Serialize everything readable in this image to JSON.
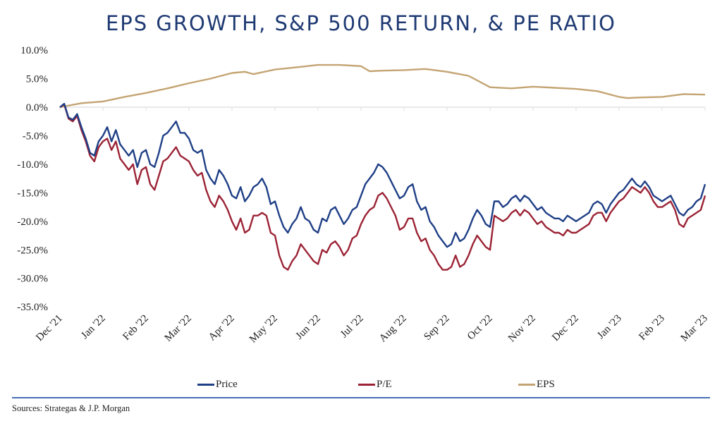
{
  "title": "EPS GROWTH, S&P 500 RETURN, & PE RATIO",
  "source": "Sources: Strategas & J.P. Morgan",
  "colors": {
    "title": "#1f3a73",
    "price": "#1f3f86",
    "pe": "#9b2335",
    "eps": "#c4a473",
    "zero_line": "#e3e3e3",
    "divider": "#4a6fb5"
  },
  "legend": [
    {
      "key": "price",
      "label": "Price"
    },
    {
      "key": "pe",
      "label": "P/E"
    },
    {
      "key": "eps",
      "label": "EPS"
    }
  ],
  "chart_data": {
    "type": "line",
    "title": "EPS GROWTH, S&P 500 RETURN, & PE RATIO",
    "xlabel": "",
    "ylabel": "",
    "ylim": [
      -35,
      10
    ],
    "yticks": [
      10,
      5,
      0,
      -5,
      -10,
      -15,
      -20,
      -25,
      -30,
      -35
    ],
    "ytick_labels": [
      "10.0%",
      "5.0%",
      "0.0%",
      "-5.0%",
      "-10.0%",
      "-15.0%",
      "-20.0%",
      "-25.0%",
      "-30.0%",
      "-35.0%"
    ],
    "x_months": [
      "Dec '21",
      "Jan '22",
      "Feb '22",
      "Mar '22",
      "Apr '22",
      "May '22",
      "Jun '22",
      "Jul '22",
      "Aug '22",
      "Sep '22",
      "Oct '22",
      "Nov '22",
      "Dec '22",
      "Jan '23",
      "Feb '23",
      "Mar '23"
    ],
    "x_range_months": [
      0,
      15
    ],
    "grid": false,
    "legend_position": "bottom",
    "series": [
      {
        "name": "Price",
        "key": "price",
        "x": [
          0,
          0.1,
          0.2,
          0.3,
          0.4,
          0.5,
          0.6,
          0.7,
          0.8,
          0.9,
          1.0,
          1.1,
          1.2,
          1.3,
          1.4,
          1.5,
          1.6,
          1.7,
          1.8,
          1.9,
          2.0,
          2.1,
          2.2,
          2.3,
          2.4,
          2.5,
          2.6,
          2.7,
          2.8,
          2.9,
          3.0,
          3.1,
          3.2,
          3.3,
          3.4,
          3.5,
          3.6,
          3.7,
          3.8,
          3.9,
          4.0,
          4.1,
          4.2,
          4.3,
          4.4,
          4.5,
          4.6,
          4.7,
          4.8,
          4.9,
          5.0,
          5.1,
          5.2,
          5.3,
          5.4,
          5.5,
          5.6,
          5.7,
          5.8,
          5.9,
          6.0,
          6.1,
          6.2,
          6.3,
          6.4,
          6.5,
          6.6,
          6.7,
          6.8,
          6.9,
          7.0,
          7.1,
          7.2,
          7.3,
          7.4,
          7.5,
          7.6,
          7.7,
          7.8,
          7.9,
          8.0,
          8.1,
          8.2,
          8.3,
          8.4,
          8.5,
          8.6,
          8.7,
          8.8,
          8.9,
          9.0,
          9.1,
          9.2,
          9.3,
          9.4,
          9.5,
          9.6,
          9.7,
          9.8,
          9.9,
          10.0,
          10.1,
          10.2,
          10.3,
          10.4,
          10.5,
          10.6,
          10.7,
          10.8,
          10.9,
          11.0,
          11.1,
          11.2,
          11.3,
          11.4,
          11.5,
          11.6,
          11.7,
          11.8,
          11.9,
          12.0,
          12.1,
          12.2,
          12.3,
          12.4,
          12.5,
          12.6,
          12.7,
          12.8,
          12.9,
          13.0,
          13.1,
          13.2,
          13.3,
          13.4,
          13.5,
          13.6,
          13.7,
          13.8,
          13.9,
          14.0,
          14.1,
          14.2,
          14.3,
          14.4,
          14.5,
          14.6,
          14.7,
          14.8,
          14.9,
          15.0
        ],
        "values": [
          0,
          0.6,
          -1.8,
          -2.2,
          -1.2,
          -3.5,
          -5.5,
          -8.0,
          -8.5,
          -6.0,
          -5.0,
          -3.5,
          -6.0,
          -4.0,
          -6.5,
          -7.5,
          -8.5,
          -7.5,
          -10.5,
          -8.0,
          -7.5,
          -10.0,
          -10.5,
          -8.0,
          -5.0,
          -4.5,
          -3.5,
          -2.5,
          -4.5,
          -4.5,
          -5.5,
          -7.5,
          -8.0,
          -7.5,
          -11.0,
          -12.5,
          -13.5,
          -11.0,
          -12.0,
          -13.5,
          -15.5,
          -16.0,
          -14.0,
          -16.5,
          -15.5,
          -14.0,
          -13.5,
          -12.5,
          -14.0,
          -17.0,
          -16.5,
          -19.0,
          -21.0,
          -22.0,
          -20.5,
          -19.5,
          -17.5,
          -19.5,
          -20.0,
          -21.5,
          -22.0,
          -19.5,
          -20.0,
          -18.0,
          -17.5,
          -19.0,
          -20.5,
          -19.5,
          -18.0,
          -17.5,
          -15.5,
          -13.5,
          -12.5,
          -11.5,
          -10.0,
          -10.5,
          -11.5,
          -13.0,
          -14.5,
          -16.0,
          -15.5,
          -14.0,
          -13.5,
          -16.5,
          -18.0,
          -17.5,
          -20.0,
          -21.0,
          -22.5,
          -23.5,
          -24.5,
          -24.0,
          -22.0,
          -23.5,
          -23.0,
          -21.5,
          -19.5,
          -18.0,
          -19.0,
          -20.5,
          -21.0,
          -16.5,
          -16.5,
          -17.5,
          -17.0,
          -16.0,
          -15.5,
          -16.5,
          -15.5,
          -16.0,
          -17.0,
          -18.0,
          -17.5,
          -18.5,
          -19.0,
          -19.5,
          -19.5,
          -20.0,
          -19.0,
          -19.5,
          -20.0,
          -19.5,
          -19.0,
          -18.5,
          -17.0,
          -16.5,
          -17.0,
          -18.5,
          -17.0,
          -16.0,
          -15.0,
          -14.5,
          -13.5,
          -12.5,
          -13.5,
          -14.0,
          -13.0,
          -14.0,
          -15.5,
          -16.0,
          -16.5,
          -16.0,
          -15.5,
          -17.0,
          -18.5,
          -19.0,
          -18.0,
          -17.5,
          -16.5,
          -16.0,
          -13.5
        ]
      },
      {
        "name": "P/E",
        "key": "pe",
        "x": [
          0,
          0.1,
          0.2,
          0.3,
          0.4,
          0.5,
          0.6,
          0.7,
          0.8,
          0.9,
          1.0,
          1.1,
          1.2,
          1.3,
          1.4,
          1.5,
          1.6,
          1.7,
          1.8,
          1.9,
          2.0,
          2.1,
          2.2,
          2.3,
          2.4,
          2.5,
          2.6,
          2.7,
          2.8,
          2.9,
          3.0,
          3.1,
          3.2,
          3.3,
          3.4,
          3.5,
          3.6,
          3.7,
          3.8,
          3.9,
          4.0,
          4.1,
          4.2,
          4.3,
          4.4,
          4.5,
          4.6,
          4.7,
          4.8,
          4.9,
          5.0,
          5.1,
          5.2,
          5.3,
          5.4,
          5.5,
          5.6,
          5.7,
          5.8,
          5.9,
          6.0,
          6.1,
          6.2,
          6.3,
          6.4,
          6.5,
          6.6,
          6.7,
          6.8,
          6.9,
          7.0,
          7.1,
          7.2,
          7.3,
          7.4,
          7.5,
          7.6,
          7.7,
          7.8,
          7.9,
          8.0,
          8.1,
          8.2,
          8.3,
          8.4,
          8.5,
          8.6,
          8.7,
          8.8,
          8.9,
          9.0,
          9.1,
          9.2,
          9.3,
          9.4,
          9.5,
          9.6,
          9.7,
          9.8,
          9.9,
          10.0,
          10.1,
          10.2,
          10.3,
          10.4,
          10.5,
          10.6,
          10.7,
          10.8,
          10.9,
          11.0,
          11.1,
          11.2,
          11.3,
          11.4,
          11.5,
          11.6,
          11.7,
          11.8,
          11.9,
          12.0,
          12.1,
          12.2,
          12.3,
          12.4,
          12.5,
          12.6,
          12.7,
          12.8,
          12.9,
          13.0,
          13.1,
          13.2,
          13.3,
          13.4,
          13.5,
          13.6,
          13.7,
          13.8,
          13.9,
          14.0,
          14.1,
          14.2,
          14.3,
          14.4,
          14.5,
          14.6,
          14.7,
          14.8,
          14.9,
          15.0
        ],
        "values": [
          0,
          0.5,
          -2.0,
          -2.5,
          -1.5,
          -4.0,
          -6.0,
          -8.5,
          -9.5,
          -7.0,
          -6.0,
          -5.5,
          -7.5,
          -6.0,
          -9.0,
          -10.0,
          -11.0,
          -10.0,
          -13.5,
          -11.0,
          -10.5,
          -13.5,
          -14.5,
          -12.0,
          -9.5,
          -9.0,
          -8.0,
          -7.0,
          -8.5,
          -9.0,
          -9.5,
          -11.0,
          -12.0,
          -11.5,
          -14.5,
          -16.5,
          -17.5,
          -15.5,
          -16.5,
          -18.0,
          -20.0,
          -21.5,
          -19.5,
          -22.0,
          -21.5,
          -19.0,
          -19.0,
          -18.5,
          -19.0,
          -22.0,
          -22.5,
          -26.0,
          -28.0,
          -28.5,
          -27.0,
          -26.0,
          -24.0,
          -25.0,
          -26.0,
          -27.0,
          -27.5,
          -25.0,
          -25.5,
          -24.0,
          -23.5,
          -24.5,
          -26.0,
          -25.0,
          -23.0,
          -22.5,
          -20.5,
          -19.0,
          -18.0,
          -17.5,
          -15.5,
          -15.0,
          -16.0,
          -17.5,
          -19.0,
          -21.5,
          -21.0,
          -19.5,
          -19.5,
          -22.0,
          -23.5,
          -23.0,
          -25.0,
          -26.0,
          -27.5,
          -28.5,
          -28.5,
          -28.0,
          -26.0,
          -28.0,
          -27.5,
          -26.0,
          -24.0,
          -22.5,
          -23.5,
          -24.5,
          -25.0,
          -19.0,
          -19.5,
          -20.0,
          -19.5,
          -18.5,
          -18.0,
          -19.0,
          -18.0,
          -18.5,
          -19.5,
          -20.5,
          -20.0,
          -21.0,
          -21.5,
          -22.0,
          -22.0,
          -22.5,
          -21.5,
          -22.0,
          -22.0,
          -21.5,
          -21.0,
          -20.5,
          -19.0,
          -18.5,
          -18.5,
          -20.0,
          -18.5,
          -17.5,
          -16.5,
          -16.0,
          -15.0,
          -14.0,
          -14.5,
          -15.0,
          -14.0,
          -15.0,
          -16.5,
          -17.5,
          -17.5,
          -17.0,
          -16.5,
          -18.0,
          -20.5,
          -21.0,
          -19.5,
          -19.0,
          -18.5,
          -18.0,
          -15.5
        ]
      },
      {
        "name": "EPS",
        "key": "eps",
        "x": [
          0,
          0.5,
          1.0,
          1.5,
          2.0,
          2.5,
          3.0,
          3.5,
          4.0,
          4.3,
          4.5,
          5.0,
          5.5,
          6.0,
          6.5,
          7.0,
          7.2,
          7.5,
          8.0,
          8.5,
          9.0,
          9.5,
          10.0,
          10.5,
          11.0,
          11.5,
          12.0,
          12.5,
          13.0,
          13.2,
          13.5,
          14.0,
          14.5,
          15.0
        ],
        "values": [
          0,
          0.7,
          1.0,
          1.8,
          2.5,
          3.3,
          4.2,
          5.0,
          6.0,
          6.2,
          5.8,
          6.6,
          7.0,
          7.4,
          7.4,
          7.2,
          6.3,
          6.4,
          6.5,
          6.7,
          6.2,
          5.5,
          3.5,
          3.3,
          3.6,
          3.4,
          3.2,
          2.8,
          1.8,
          1.6,
          1.7,
          1.8,
          2.3,
          2.2
        ]
      }
    ]
  }
}
